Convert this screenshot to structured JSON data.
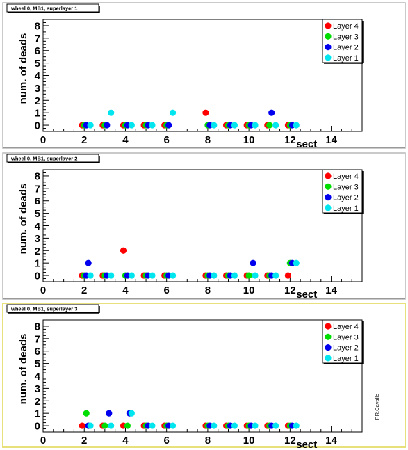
{
  "panels": [
    {
      "title": "wheel 0, MB1, superlayer 1",
      "highlighted": false,
      "chart_data": {
        "type": "scatter",
        "ylabel": "num. of deads",
        "xlabel": "sect",
        "xlim": [
          0,
          15.5
        ],
        "ylim": [
          -0.5,
          8.5
        ],
        "x_ticks": [
          0,
          2,
          4,
          6,
          8,
          10,
          12,
          14
        ],
        "y_ticks": [
          0,
          1,
          2,
          3,
          4,
          5,
          6,
          7,
          8
        ],
        "legend_position": "top-right",
        "series": [
          {
            "name": "Layer 4",
            "color": "#ff0000",
            "points": [
              [
                1.9,
                0
              ],
              [
                2.9,
                0
              ],
              [
                3.9,
                0
              ],
              [
                4.9,
                0
              ],
              [
                5.9,
                0
              ],
              [
                7.9,
                1
              ],
              [
                8.9,
                0
              ],
              [
                9.9,
                0
              ],
              [
                10.9,
                0
              ],
              [
                11.9,
                0
              ]
            ]
          },
          {
            "name": "Layer 3",
            "color": "#00dd00",
            "points": [
              [
                2.0,
                0
              ],
              [
                3.0,
                0
              ],
              [
                4.0,
                0
              ],
              [
                5.0,
                0
              ],
              [
                6.0,
                0
              ],
              [
                8.0,
                0
              ],
              [
                9.0,
                0
              ],
              [
                10.0,
                0
              ],
              [
                11.0,
                0
              ],
              [
                12.0,
                0
              ]
            ]
          },
          {
            "name": "Layer 2",
            "color": "#0000ee",
            "points": [
              [
                2.1,
                0
              ],
              [
                3.1,
                0
              ],
              [
                4.1,
                0
              ],
              [
                5.1,
                0
              ],
              [
                6.1,
                0
              ],
              [
                8.1,
                0
              ],
              [
                9.1,
                0
              ],
              [
                10.1,
                0
              ],
              [
                11.1,
                1
              ],
              [
                12.1,
                0
              ]
            ]
          },
          {
            "name": "Layer 1",
            "color": "#00e5ee",
            "points": [
              [
                2.3,
                0
              ],
              [
                3.3,
                1
              ],
              [
                4.3,
                0
              ],
              [
                5.3,
                0
              ],
              [
                6.3,
                1
              ],
              [
                8.3,
                0
              ],
              [
                9.3,
                0
              ],
              [
                10.3,
                0
              ],
              [
                11.3,
                0
              ],
              [
                12.3,
                0
              ]
            ]
          }
        ]
      }
    },
    {
      "title": "wheel 0, MB1, superlayer 2",
      "highlighted": false,
      "chart_data": {
        "type": "scatter",
        "ylabel": "num. of deads",
        "xlabel": "sect",
        "xlim": [
          0,
          15.5
        ],
        "ylim": [
          -0.5,
          8.5
        ],
        "x_ticks": [
          0,
          2,
          4,
          6,
          8,
          10,
          12,
          14
        ],
        "y_ticks": [
          0,
          1,
          2,
          3,
          4,
          5,
          6,
          7,
          8
        ],
        "legend_position": "top-right",
        "series": [
          {
            "name": "Layer 4",
            "color": "#ff0000",
            "points": [
              [
                1.9,
                0
              ],
              [
                2.9,
                0
              ],
              [
                3.9,
                2
              ],
              [
                4.9,
                0
              ],
              [
                5.9,
                0
              ],
              [
                7.9,
                0
              ],
              [
                8.9,
                0
              ],
              [
                9.9,
                0
              ],
              [
                10.9,
                0
              ],
              [
                11.9,
                0
              ]
            ]
          },
          {
            "name": "Layer 3",
            "color": "#00dd00",
            "points": [
              [
                2.0,
                0
              ],
              [
                3.0,
                0
              ],
              [
                4.0,
                0
              ],
              [
                5.0,
                0
              ],
              [
                6.0,
                0
              ],
              [
                8.0,
                0
              ],
              [
                9.0,
                0
              ],
              [
                10.0,
                0
              ],
              [
                11.0,
                0
              ],
              [
                12.0,
                1
              ]
            ]
          },
          {
            "name": "Layer 2",
            "color": "#0000ee",
            "points": [
              [
                2.1,
                0
              ],
              [
                2.2,
                1
              ],
              [
                3.1,
                0
              ],
              [
                4.1,
                0
              ],
              [
                5.1,
                0
              ],
              [
                6.1,
                0
              ],
              [
                8.1,
                0
              ],
              [
                9.1,
                0
              ],
              [
                10.2,
                1
              ],
              [
                11.1,
                0
              ],
              [
                12.1,
                1
              ]
            ]
          },
          {
            "name": "Layer 1",
            "color": "#00e5ee",
            "points": [
              [
                2.3,
                0
              ],
              [
                3.3,
                0
              ],
              [
                4.3,
                0
              ],
              [
                5.3,
                0
              ],
              [
                6.3,
                0
              ],
              [
                8.3,
                0
              ],
              [
                9.3,
                0
              ],
              [
                10.3,
                0
              ],
              [
                11.3,
                0
              ],
              [
                12.3,
                1
              ]
            ]
          }
        ]
      }
    },
    {
      "title": "wheel 0, MB1, superlayer 3",
      "highlighted": true,
      "chart_data": {
        "type": "scatter",
        "ylabel": "num. of deads",
        "xlabel": "sect",
        "xlim": [
          0,
          15.5
        ],
        "ylim": [
          -0.5,
          8.5
        ],
        "x_ticks": [
          0,
          2,
          4,
          6,
          8,
          10,
          12,
          14
        ],
        "y_ticks": [
          0,
          1,
          2,
          3,
          4,
          5,
          6,
          7,
          8
        ],
        "legend_position": "top-right",
        "series": [
          {
            "name": "Layer 4",
            "color": "#ff0000",
            "points": [
              [
                1.9,
                0
              ],
              [
                2.9,
                0
              ],
              [
                3.9,
                0
              ],
              [
                4.9,
                0
              ],
              [
                5.9,
                0
              ],
              [
                7.9,
                0
              ],
              [
                8.9,
                0
              ],
              [
                9.9,
                0
              ],
              [
                10.9,
                0
              ],
              [
                11.9,
                0
              ]
            ]
          },
          {
            "name": "Layer 3",
            "color": "#00dd00",
            "points": [
              [
                2.1,
                1
              ],
              [
                3.0,
                0
              ],
              [
                4.1,
                0
              ],
              [
                5.0,
                0
              ],
              [
                6.0,
                0
              ],
              [
                8.0,
                0
              ],
              [
                9.0,
                0
              ],
              [
                10.0,
                0
              ],
              [
                11.0,
                0
              ],
              [
                12.0,
                0
              ]
            ]
          },
          {
            "name": "Layer 2",
            "color": "#0000ee",
            "points": [
              [
                2.2,
                0
              ],
              [
                3.2,
                1
              ],
              [
                4.2,
                1
              ],
              [
                5.1,
                0
              ],
              [
                6.1,
                0
              ],
              [
                8.1,
                0
              ],
              [
                9.1,
                0
              ],
              [
                10.1,
                0
              ],
              [
                11.1,
                0
              ],
              [
                12.1,
                0
              ]
            ]
          },
          {
            "name": "Layer 1",
            "color": "#00e5ee",
            "points": [
              [
                2.3,
                0
              ],
              [
                3.3,
                0
              ],
              [
                4.3,
                1
              ],
              [
                5.3,
                0
              ],
              [
                6.3,
                0
              ],
              [
                8.3,
                0
              ],
              [
                9.3,
                0
              ],
              [
                10.3,
                0
              ],
              [
                11.3,
                0
              ],
              [
                12.3,
                0
              ]
            ]
          }
        ]
      }
    }
  ],
  "author_label": "F.R.Cavallo",
  "colors": {
    "panel_border": "#b8b8b8",
    "highlight_border": "#e8e07a",
    "axis": "#000000"
  }
}
